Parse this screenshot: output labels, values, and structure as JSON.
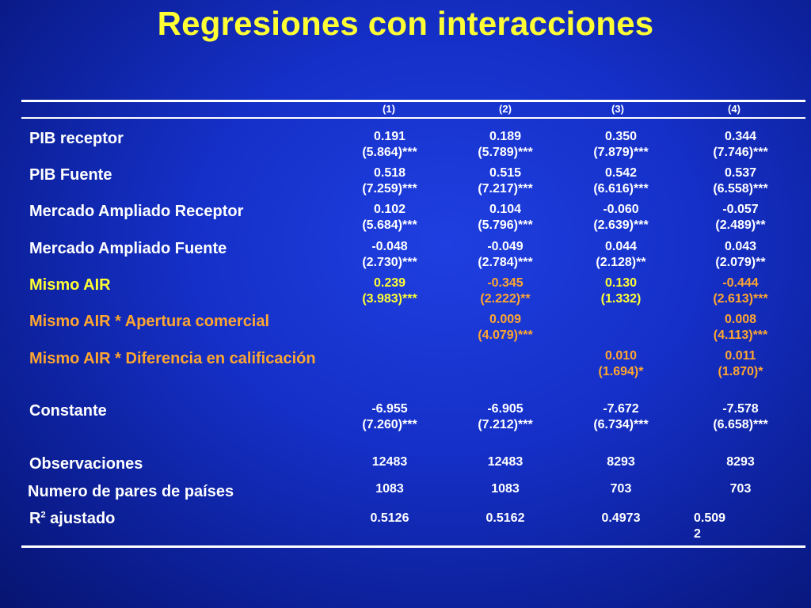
{
  "title": "Regresiones con interacciones",
  "columns": [
    "(1)",
    "(2)",
    "(3)",
    "(4)"
  ],
  "rows": {
    "pib_receptor": {
      "label": "PIB receptor",
      "coef": [
        "0.191",
        "0.189",
        "0.350",
        "0.344"
      ],
      "t": [
        "(5.864)***",
        "(5.789)***",
        "(7.879)***",
        "(7.746)***"
      ]
    },
    "pib_fuente": {
      "label": "PIB Fuente",
      "coef": [
        "0.518",
        "0.515",
        "0.542",
        "0.537"
      ],
      "t": [
        "(7.259)***",
        "(7.217)***",
        "(6.616)***",
        "(6.558)***"
      ]
    },
    "mercado_receptor": {
      "label": "Mercado Ampliado Receptor",
      "coef": [
        "0.102",
        "0.104",
        "-0.060",
        "-0.057"
      ],
      "t": [
        "(5.684)***",
        "(5.796)***",
        "(2.639)***",
        "(2.489)**"
      ]
    },
    "mercado_fuente": {
      "label": "Mercado Ampliado Fuente",
      "coef": [
        "-0.048",
        "-0.049",
        "0.044",
        "0.043"
      ],
      "t": [
        "(2.730)***",
        "(2.784)***",
        "(2.128)**",
        "(2.079)**"
      ]
    },
    "mismo_air": {
      "label": "Mismo AIR",
      "coef": [
        "0.239",
        "-0.345",
        "0.130",
        "-0.444"
      ],
      "t": [
        "(3.983)***",
        "(2.222)**",
        "(1.332)",
        "(2.613)***"
      ]
    },
    "mismo_air_apertura": {
      "label": "Mismo AIR * Apertura comercial",
      "coef": [
        "",
        "0.009",
        "",
        "0.008"
      ],
      "t": [
        "",
        "(4.079)***",
        "",
        "(4.113)***"
      ]
    },
    "mismo_air_diferencia": {
      "label": "Mismo AIR * Diferencia en calificación",
      "coef": [
        "",
        "",
        "0.010",
        "0.011"
      ],
      "t": [
        "",
        "",
        "(1.694)*",
        "(1.870)*"
      ]
    },
    "constante": {
      "label": "Constante",
      "coef": [
        "-6.955",
        "-6.905",
        "-7.672",
        "-7.578"
      ],
      "t": [
        "(7.260)***",
        "(7.212)***",
        "(6.734)***",
        "(6.658)***"
      ]
    },
    "observaciones": {
      "label": "Observaciones",
      "values": [
        "12483",
        "12483",
        "8293",
        "8293"
      ]
    },
    "pares": {
      "label": "Numero de pares de países",
      "values": [
        "1083",
        "1083",
        "703",
        "703"
      ]
    },
    "r2": {
      "label_main": "R",
      "label_sup": "2",
      "label_rest": " ajustado",
      "values": [
        "0.5126",
        "0.5162",
        "0.4973",
        "0.509"
      ],
      "value4_wrap": "2"
    }
  }
}
